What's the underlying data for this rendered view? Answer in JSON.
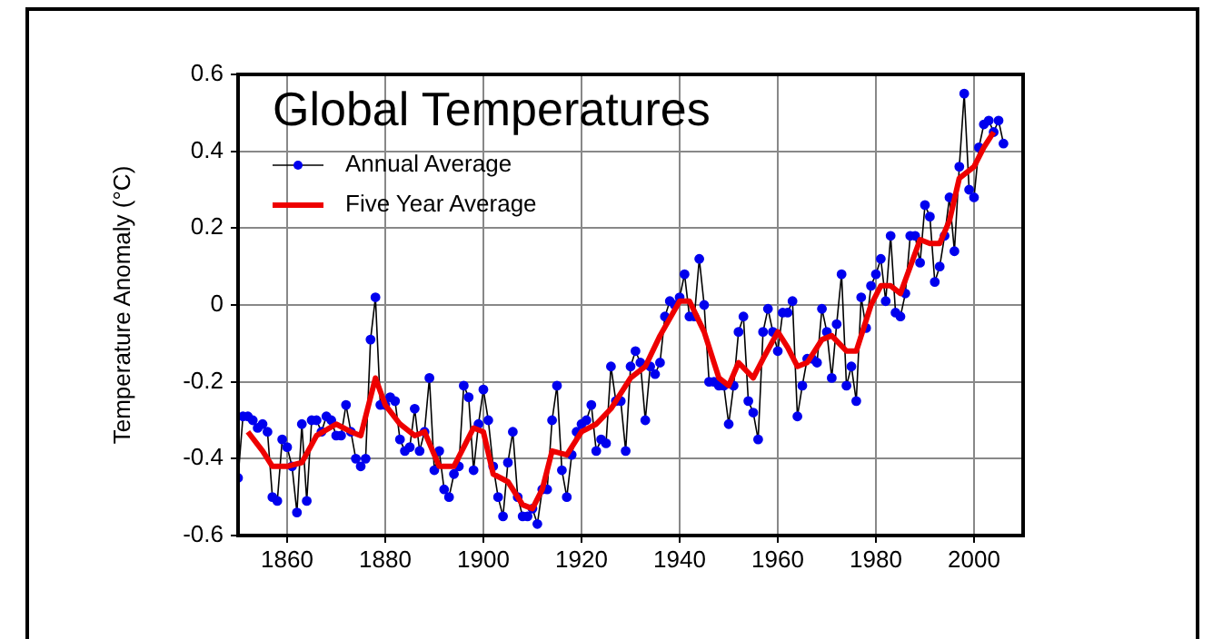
{
  "chart_data": {
    "type": "line",
    "title": "Global Temperatures",
    "ylabel": "Temperature Anomaly (°C)",
    "xlim": [
      1850,
      2010
    ],
    "xticks": [
      1860,
      1880,
      1900,
      1920,
      1940,
      1960,
      1980,
      2000
    ],
    "ylim": [
      -0.6,
      0.6
    ],
    "yticks": [
      -0.6,
      -0.4,
      -0.2,
      0,
      0.2,
      0.4,
      0.6
    ],
    "grid": true,
    "legend": "top left",
    "line_style": "solid",
    "series": [
      {
        "name": "Annual Average",
        "color": "#0000ee",
        "marker": "circle",
        "x": [
          1850,
          1851,
          1852,
          1853,
          1854,
          1855,
          1856,
          1857,
          1858,
          1859,
          1860,
          1861,
          1862,
          1863,
          1864,
          1865,
          1866,
          1867,
          1868,
          1869,
          1870,
          1871,
          1872,
          1873,
          1874,
          1875,
          1876,
          1877,
          1878,
          1879,
          1880,
          1881,
          1882,
          1883,
          1884,
          1885,
          1886,
          1887,
          1888,
          1889,
          1890,
          1891,
          1892,
          1893,
          1894,
          1895,
          1896,
          1897,
          1898,
          1899,
          1900,
          1901,
          1902,
          1903,
          1904,
          1905,
          1906,
          1907,
          1908,
          1909,
          1910,
          1911,
          1912,
          1913,
          1914,
          1915,
          1916,
          1917,
          1918,
          1919,
          1920,
          1921,
          1922,
          1923,
          1924,
          1925,
          1926,
          1927,
          1928,
          1929,
          1930,
          1931,
          1932,
          1933,
          1934,
          1935,
          1936,
          1937,
          1938,
          1939,
          1940,
          1941,
          1942,
          1943,
          1944,
          1945,
          1946,
          1947,
          1948,
          1949,
          1950,
          1951,
          1952,
          1953,
          1954,
          1955,
          1956,
          1957,
          1958,
          1959,
          1960,
          1961,
          1962,
          1963,
          1964,
          1965,
          1966,
          1967,
          1968,
          1969,
          1970,
          1971,
          1972,
          1973,
          1974,
          1975,
          1976,
          1977,
          1978,
          1979,
          1980,
          1981,
          1982,
          1983,
          1984,
          1985,
          1986,
          1987,
          1988,
          1989,
          1990,
          1991,
          1992,
          1993,
          1994,
          1995,
          1996,
          1997,
          1998,
          1999,
          2000,
          2001,
          2002,
          2003,
          2004,
          2005,
          2006
        ],
        "values": [
          -0.45,
          -0.29,
          -0.29,
          -0.3,
          -0.32,
          -0.31,
          -0.33,
          -0.5,
          -0.51,
          -0.35,
          -0.37,
          -0.42,
          -0.54,
          -0.31,
          -0.51,
          -0.3,
          -0.3,
          -0.33,
          -0.29,
          -0.3,
          -0.34,
          -0.34,
          -0.26,
          -0.33,
          -0.4,
          -0.42,
          -0.4,
          -0.09,
          0.02,
          -0.26,
          -0.26,
          -0.24,
          -0.25,
          -0.35,
          -0.38,
          -0.37,
          -0.27,
          -0.38,
          -0.33,
          -0.19,
          -0.43,
          -0.38,
          -0.48,
          -0.5,
          -0.44,
          -0.42,
          -0.21,
          -0.24,
          -0.43,
          -0.31,
          -0.22,
          -0.3,
          -0.42,
          -0.5,
          -0.55,
          -0.41,
          -0.33,
          -0.5,
          -0.55,
          -0.55,
          -0.53,
          -0.57,
          -0.48,
          -0.48,
          -0.3,
          -0.21,
          -0.43,
          -0.5,
          -0.39,
          -0.33,
          -0.31,
          -0.3,
          -0.26,
          -0.38,
          -0.35,
          -0.36,
          -0.16,
          -0.25,
          -0.25,
          -0.38,
          -0.16,
          -0.12,
          -0.15,
          -0.3,
          -0.16,
          -0.18,
          -0.15,
          -0.03,
          0.01,
          0,
          0.02,
          0.08,
          -0.03,
          -0.03,
          0.12,
          0,
          -0.2,
          -0.2,
          -0.21,
          -0.21,
          -0.31,
          -0.21,
          -0.07,
          -0.03,
          -0.25,
          -0.28,
          -0.35,
          -0.07,
          -0.01,
          -0.07,
          -0.12,
          -0.02,
          -0.02,
          0.01,
          -0.29,
          -0.21,
          -0.14,
          -0.14,
          -0.15,
          -0.01,
          -0.07,
          -0.19,
          -0.05,
          0.08,
          -0.21,
          -0.16,
          -0.25,
          0.02,
          -0.06,
          0.05,
          0.08,
          0.12,
          0.01,
          0.18,
          -0.02,
          -0.03,
          0.03,
          0.18,
          0.18,
          0.11,
          0.26,
          0.23,
          0.06,
          0.1,
          0.18,
          0.28,
          0.14,
          0.36,
          0.55,
          0.3,
          0.28,
          0.41,
          0.47,
          0.48,
          0.45,
          0.48,
          0.42
        ]
      },
      {
        "name": "Five Year Average",
        "color": "#ee0000",
        "marker": "none",
        "x": [
          1852,
          1855,
          1857,
          1860,
          1863,
          1866,
          1870,
          1873,
          1875,
          1878,
          1880,
          1883,
          1886,
          1888,
          1891,
          1894,
          1898,
          1900,
          1902,
          1905,
          1908,
          1910,
          1912,
          1914,
          1917,
          1920,
          1923,
          1926,
          1930,
          1933,
          1936,
          1940,
          1942,
          1945,
          1948,
          1950,
          1952,
          1955,
          1957,
          1960,
          1962,
          1964,
          1966,
          1969,
          1971,
          1974,
          1976,
          1979,
          1981,
          1983,
          1985,
          1987,
          1989,
          1991,
          1993,
          1995,
          1997,
          2000,
          2002,
          2004
        ],
        "values": [
          -0.33,
          -0.38,
          -0.42,
          -0.42,
          -0.41,
          -0.34,
          -0.31,
          -0.33,
          -0.34,
          -0.19,
          -0.26,
          -0.31,
          -0.34,
          -0.33,
          -0.42,
          -0.42,
          -0.32,
          -0.33,
          -0.44,
          -0.46,
          -0.52,
          -0.53,
          -0.48,
          -0.38,
          -0.39,
          -0.33,
          -0.31,
          -0.27,
          -0.19,
          -0.16,
          -0.08,
          0.01,
          0.01,
          -0.07,
          -0.19,
          -0.21,
          -0.15,
          -0.19,
          -0.14,
          -0.07,
          -0.11,
          -0.16,
          -0.15,
          -0.09,
          -0.08,
          -0.12,
          -0.12,
          0,
          0.05,
          0.05,
          0.03,
          0.1,
          0.17,
          0.16,
          0.16,
          0.22,
          0.33,
          0.36,
          0.41,
          0.45
        ]
      }
    ]
  }
}
